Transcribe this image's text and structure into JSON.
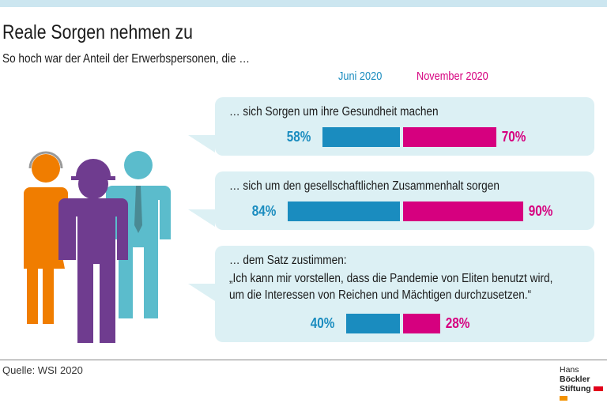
{
  "chart_data": {
    "type": "bar",
    "title": "Reale Sorgen nehmen zu",
    "subtitle": "So hoch war der Anteil der Erwerbspersonen, die …",
    "categories": [
      "… sich Sorgen um ihre Gesundheit machen",
      "… sich um den gesellschaftlichen Zusammenhalt sorgen",
      "… dem Satz zustimmen:"
    ],
    "quote": [
      "„Ich kann mir vorstellen, dass die Pandemie von Eliten benutzt wird,",
      "um die Interessen von Reichen und Mächtigen durchzusetzen.“"
    ],
    "series": [
      {
        "name": "Juni 2020",
        "values": [
          58,
          84,
          40
        ],
        "color": "#1a8cbf",
        "labels": [
          "58%",
          "84%",
          "40%"
        ]
      },
      {
        "name": "November 2020",
        "values": [
          70,
          90,
          28
        ],
        "color": "#d6007f",
        "labels": [
          "70%",
          "90%",
          "28%"
        ]
      }
    ],
    "unit": "%"
  },
  "source": "Quelle: WSI 2020",
  "logo": {
    "line1": "Hans",
    "line1b": "Böckler",
    "line2": "Stiftung"
  },
  "colors": {
    "band": "#cce6f0",
    "bubble": "#dcf0f4",
    "orange": "#f07d00",
    "purple": "#6f3c8f",
    "teal": "#5bbccc"
  }
}
